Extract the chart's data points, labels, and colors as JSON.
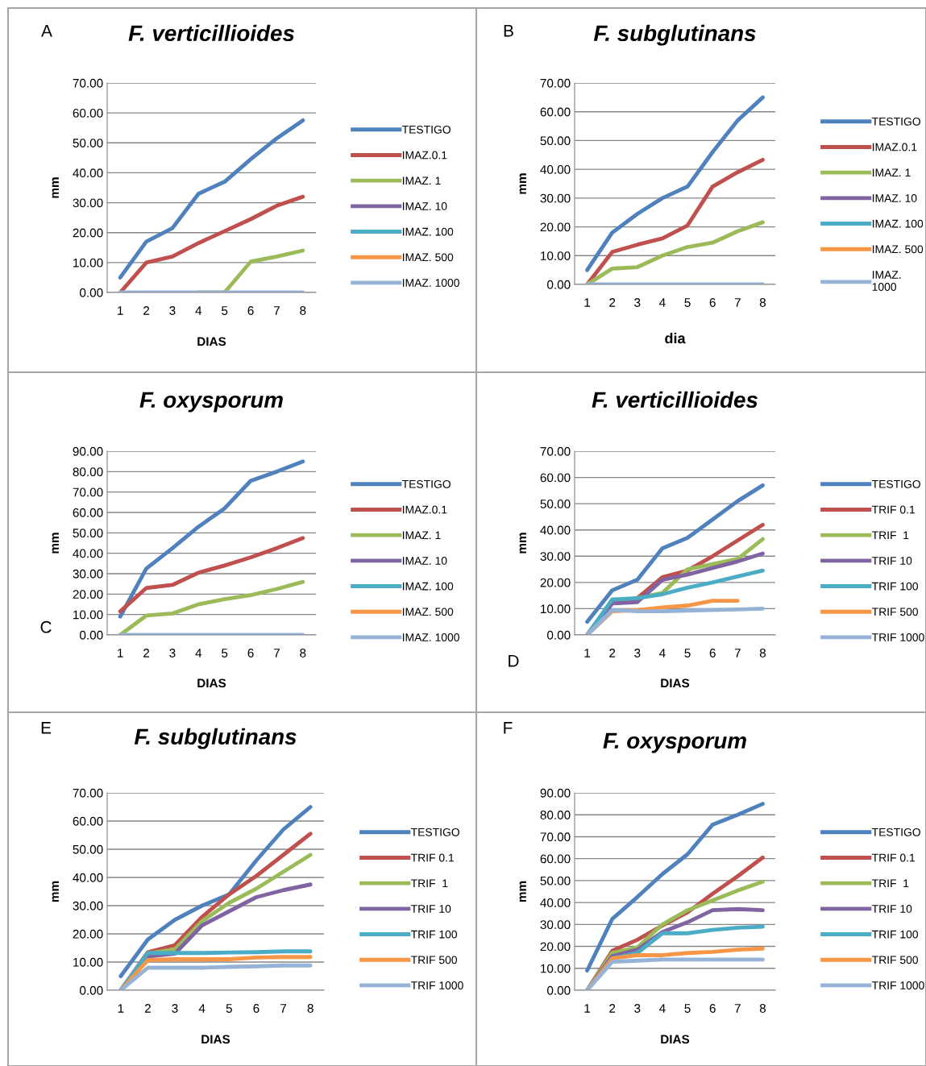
{
  "chart_data": [
    {
      "type": "line",
      "title": "F. verticillioides",
      "xlabel": "DIAS",
      "ylabel": "mm",
      "annotations": [
        "A"
      ],
      "categories": [
        "1",
        "2",
        "3",
        "4",
        "5",
        "6",
        "7",
        "8"
      ],
      "ylim": [
        0,
        70
      ],
      "yticks": [
        {
          "value": 0,
          "label": "0.00"
        },
        {
          "value": 10,
          "label": "10.00"
        },
        {
          "value": 20,
          "label": "20.00"
        },
        {
          "value": 30,
          "label": "30.00"
        },
        {
          "value": 40,
          "label": "40.00"
        },
        {
          "value": 50,
          "label": "50.00"
        },
        {
          "value": 60,
          "label": "60.00"
        },
        {
          "value": 70,
          "label": "70.00"
        }
      ],
      "grid": "y",
      "legend": "right",
      "marker": "none",
      "line_style": "solid",
      "series": [
        {
          "name": "TESTIGO",
          "color": "#4f81bd",
          "values": [
            5,
            17,
            21.5,
            33,
            37,
            44.5,
            51.5,
            57.5
          ]
        },
        {
          "name": "IMAZ.0.1",
          "color": "#c0504d",
          "values": [
            0,
            10,
            12,
            16.5,
            20.5,
            24.5,
            29,
            32
          ]
        },
        {
          "name": "IMAZ. 1",
          "color": "#9bbb59",
          "values": [
            null,
            null,
            null,
            0,
            0,
            10.3,
            12,
            14
          ]
        },
        {
          "name": "IMAZ. 10",
          "color": "#8064a2",
          "values": [
            null,
            null,
            null,
            null,
            null,
            null,
            null,
            null
          ]
        },
        {
          "name": "IMAZ. 100",
          "color": "#4bacc6",
          "values": [
            null,
            null,
            null,
            null,
            null,
            null,
            null,
            null
          ]
        },
        {
          "name": "IMAZ. 500",
          "color": "#f79646",
          "values": [
            null,
            null,
            null,
            null,
            null,
            null,
            null,
            null
          ]
        },
        {
          "name": "IMAZ. 1000",
          "color": "#95b3d7",
          "values": [
            0,
            0,
            0,
            0,
            0,
            0,
            0,
            0
          ]
        }
      ]
    },
    {
      "type": "line",
      "title": "F. subglutinans",
      "xlabel": "dia",
      "ylabel": "mm",
      "annotations": [
        "B"
      ],
      "categories": [
        "1",
        "2",
        "3",
        "4",
        "5",
        "6",
        "7",
        "8"
      ],
      "ylim": [
        0,
        70
      ],
      "yticks": [
        {
          "value": 0,
          "label": "0.00"
        },
        {
          "value": 10,
          "label": "10.00"
        },
        {
          "value": 20,
          "label": "20.00"
        },
        {
          "value": 30,
          "label": "30.00"
        },
        {
          "value": 40,
          "label": "40.00"
        },
        {
          "value": 50,
          "label": "50.00"
        },
        {
          "value": 60,
          "label": "60.00"
        },
        {
          "value": 70,
          "label": "70.00"
        }
      ],
      "grid": "y",
      "legend": "right",
      "marker": "none",
      "line_style": "solid",
      "series": [
        {
          "name": "TESTIGO",
          "color": "#4f81bd",
          "values": [
            5,
            18,
            24.5,
            30,
            34,
            46,
            57,
            65
          ]
        },
        {
          "name": "IMAZ.0.1",
          "color": "#c0504d",
          "values": [
            0,
            11.3,
            13.8,
            16,
            20.5,
            34,
            39,
            43.3
          ]
        },
        {
          "name": "IMAZ. 1",
          "color": "#9bbb59",
          "values": [
            0,
            5.5,
            6,
            10,
            13,
            14.5,
            18.5,
            21.6
          ]
        },
        {
          "name": "IMAZ. 10",
          "color": "#8064a2",
          "values": [
            null,
            null,
            null,
            null,
            null,
            null,
            null,
            null
          ]
        },
        {
          "name": "IMAZ. 100",
          "color": "#4bacc6",
          "values": [
            null,
            null,
            null,
            null,
            null,
            null,
            null,
            null
          ]
        },
        {
          "name": "IMAZ. 500",
          "color": "#f79646",
          "values": [
            null,
            null,
            null,
            null,
            null,
            null,
            null,
            null
          ]
        },
        {
          "name": "IMAZ.\n1000",
          "color": "#95b3d7",
          "values": [
            0,
            0,
            0,
            0,
            0,
            0,
            0,
            0
          ]
        }
      ]
    },
    {
      "type": "line",
      "title": "F. oxysporum",
      "xlabel": "DIAS",
      "ylabel": "mm",
      "annotations": [
        "C"
      ],
      "categories": [
        "1",
        "2",
        "3",
        "4",
        "5",
        "6",
        "7",
        "8"
      ],
      "ylim": [
        0,
        90
      ],
      "yticks": [
        {
          "value": 0,
          "label": "0.00"
        },
        {
          "value": 10,
          "label": "10.00"
        },
        {
          "value": 20,
          "label": "20.00"
        },
        {
          "value": 30,
          "label": "30.00"
        },
        {
          "value": 40,
          "label": "40.00"
        },
        {
          "value": 50,
          "label": "50.00"
        },
        {
          "value": 60,
          "label": "60.00"
        },
        {
          "value": 70,
          "label": "70.00"
        },
        {
          "value": 80,
          "label": "80.00"
        },
        {
          "value": 90,
          "label": "90.00"
        }
      ],
      "grid": "y",
      "legend": "right",
      "marker": "none",
      "line_style": "solid",
      "series": [
        {
          "name": "TESTIGO",
          "color": "#4f81bd",
          "values": [
            9,
            32.5,
            42.5,
            53,
            62,
            75.5,
            80,
            85
          ]
        },
        {
          "name": "IMAZ.0.1",
          "color": "#c0504d",
          "values": [
            11.5,
            23,
            24.5,
            30.5,
            34,
            38,
            42.5,
            47.5
          ]
        },
        {
          "name": "IMAZ. 1",
          "color": "#9bbb59",
          "values": [
            0,
            9.5,
            10.5,
            15,
            17.5,
            19.5,
            22.5,
            26
          ]
        },
        {
          "name": "IMAZ. 10",
          "color": "#8064a2",
          "values": [
            null,
            null,
            null,
            null,
            null,
            null,
            null,
            null
          ]
        },
        {
          "name": "IMAZ. 100",
          "color": "#4bacc6",
          "values": [
            null,
            null,
            null,
            null,
            null,
            null,
            null,
            null
          ]
        },
        {
          "name": "IMAZ. 500",
          "color": "#f79646",
          "values": [
            null,
            null,
            null,
            null,
            null,
            null,
            null,
            null
          ]
        },
        {
          "name": "IMAZ. 1000",
          "color": "#95b3d7",
          "values": [
            0,
            0,
            0,
            0,
            0,
            0,
            0,
            0
          ]
        }
      ]
    },
    {
      "type": "line",
      "title": "F. verticillioides",
      "xlabel": "DIAS",
      "ylabel": "mm",
      "annotations": [
        "D"
      ],
      "categories": [
        "1",
        "2",
        "3",
        "4",
        "5",
        "6",
        "7",
        "8"
      ],
      "ylim": [
        0,
        70
      ],
      "yticks": [
        {
          "value": 0,
          "label": "0.00"
        },
        {
          "value": 10,
          "label": "10.00"
        },
        {
          "value": 20,
          "label": "20.00"
        },
        {
          "value": 30,
          "label": "30.00"
        },
        {
          "value": 40,
          "label": "40.00"
        },
        {
          "value": 50,
          "label": "50.00"
        },
        {
          "value": 60,
          "label": "60.00"
        },
        {
          "value": 70,
          "label": "70.00"
        }
      ],
      "grid": "y",
      "legend": "right",
      "marker": "none",
      "line_style": "solid",
      "series": [
        {
          "name": "TESTIGO",
          "color": "#4f81bd",
          "values": [
            5,
            17,
            21,
            33,
            37,
            44,
            51,
            57
          ]
        },
        {
          "name": "TRIF 0.1",
          "color": "#c0504d",
          "values": [
            0,
            12.5,
            14,
            22,
            24.5,
            30,
            36,
            42
          ]
        },
        {
          "name": "TRIF  1",
          "color": "#9bbb59",
          "values": [
            0,
            12.5,
            14,
            16,
            25,
            27,
            29,
            36.5
          ]
        },
        {
          "name": "TRIF 10",
          "color": "#8064a2",
          "values": [
            0,
            12,
            12.5,
            21,
            23,
            25.5,
            28,
            31
          ]
        },
        {
          "name": "TRIF 100",
          "color": "#4bacc6",
          "values": [
            0,
            13.5,
            14,
            15.5,
            18,
            20,
            22.3,
            24.5
          ]
        },
        {
          "name": "TRIF 500",
          "color": "#f79646",
          "values": [
            0,
            9,
            9.5,
            10.5,
            11.2,
            13,
            13,
            null
          ]
        },
        {
          "name": "TRIF 1000",
          "color": "#95b3d7",
          "values": [
            0,
            9.5,
            9,
            9,
            9.3,
            9.5,
            9.7,
            10
          ]
        }
      ]
    },
    {
      "type": "line",
      "title": "F. subglutinans",
      "xlabel": "DIAS",
      "ylabel": "mm",
      "annotations": [
        "E"
      ],
      "categories": [
        "1",
        "2",
        "3",
        "4",
        "5",
        "6",
        "7",
        "8"
      ],
      "ylim": [
        0,
        70
      ],
      "yticks": [
        {
          "value": 0,
          "label": "0.00"
        },
        {
          "value": 10,
          "label": "10.00"
        },
        {
          "value": 20,
          "label": "20.00"
        },
        {
          "value": 30,
          "label": "30.00"
        },
        {
          "value": 40,
          "label": "40.00"
        },
        {
          "value": 50,
          "label": "50.00"
        },
        {
          "value": 60,
          "label": "60.00"
        },
        {
          "value": 70,
          "label": "70.00"
        }
      ],
      "grid": "y",
      "legend": "right",
      "marker": "none",
      "line_style": "solid",
      "series": [
        {
          "name": "TESTIGO",
          "color": "#4f81bd",
          "values": [
            5,
            18,
            25,
            30,
            34,
            46,
            57,
            65
          ]
        },
        {
          "name": "TRIF 0.1",
          "color": "#c0504d",
          "values": [
            0,
            13.5,
            16,
            26,
            34,
            40.5,
            48,
            55.5
          ]
        },
        {
          "name": "TRIF  1",
          "color": "#9bbb59",
          "values": [
            0,
            13,
            14.5,
            24.5,
            31,
            36,
            42,
            48
          ]
        },
        {
          "name": "TRIF 10",
          "color": "#8064a2",
          "values": [
            0,
            12,
            13,
            23,
            28,
            33,
            35.5,
            37.5
          ]
        },
        {
          "name": "TRIF 100",
          "color": "#4bacc6",
          "values": [
            0,
            13.2,
            13.2,
            13.2,
            13.4,
            13.5,
            13.8,
            13.8
          ]
        },
        {
          "name": "TRIF 500",
          "color": "#f79646",
          "values": [
            0,
            10.7,
            11,
            11,
            11,
            11.6,
            11.8,
            11.8
          ]
        },
        {
          "name": "TRIF 1000",
          "color": "#95b3d7",
          "values": [
            0,
            8,
            8,
            8,
            8.3,
            8.5,
            8.8,
            8.8
          ]
        }
      ]
    },
    {
      "type": "line",
      "title": "F. oxysporum",
      "xlabel": "DIAS",
      "ylabel": "mm",
      "annotations": [
        "F"
      ],
      "categories": [
        "1",
        "2",
        "3",
        "4",
        "5",
        "6",
        "7",
        "8"
      ],
      "ylim": [
        0,
        90
      ],
      "yticks": [
        {
          "value": 0,
          "label": "0.00"
        },
        {
          "value": 10,
          "label": "10.00"
        },
        {
          "value": 20,
          "label": "20.00"
        },
        {
          "value": 30,
          "label": "30.00"
        },
        {
          "value": 40,
          "label": "40.00"
        },
        {
          "value": 50,
          "label": "50.00"
        },
        {
          "value": 60,
          "label": "60.00"
        },
        {
          "value": 70,
          "label": "70.00"
        },
        {
          "value": 80,
          "label": "80.00"
        },
        {
          "value": 90,
          "label": "90.00"
        }
      ],
      "grid": "y",
      "legend": "right",
      "marker": "none",
      "line_style": "solid",
      "series": [
        {
          "name": "TESTIGO",
          "color": "#4f81bd",
          "values": [
            9,
            32.5,
            42.5,
            53,
            62,
            75.5,
            80,
            85
          ]
        },
        {
          "name": "TRIF 0.1",
          "color": "#c0504d",
          "values": [
            0,
            18,
            23,
            29.5,
            35.5,
            44,
            52,
            60.5
          ]
        },
        {
          "name": "TRIF  1",
          "color": "#9bbb59",
          "values": [
            0,
            17,
            19.5,
            30,
            36.5,
            41,
            45.5,
            49.5
          ]
        },
        {
          "name": "TRIF 10",
          "color": "#8064a2",
          "values": [
            0,
            15.5,
            18.5,
            26.5,
            31,
            36.5,
            37,
            36.5
          ]
        },
        {
          "name": "TRIF 100",
          "color": "#4bacc6",
          "values": [
            0,
            14.5,
            17,
            26,
            26,
            27.5,
            28.5,
            29
          ]
        },
        {
          "name": "TRIF 500",
          "color": "#f79646",
          "values": [
            0,
            14.5,
            16,
            16,
            17,
            17.5,
            18.5,
            19
          ]
        },
        {
          "name": "TRIF 1000",
          "color": "#95b3d7",
          "values": [
            0,
            13,
            13.5,
            14,
            14,
            14,
            14,
            14
          ]
        }
      ]
    }
  ]
}
